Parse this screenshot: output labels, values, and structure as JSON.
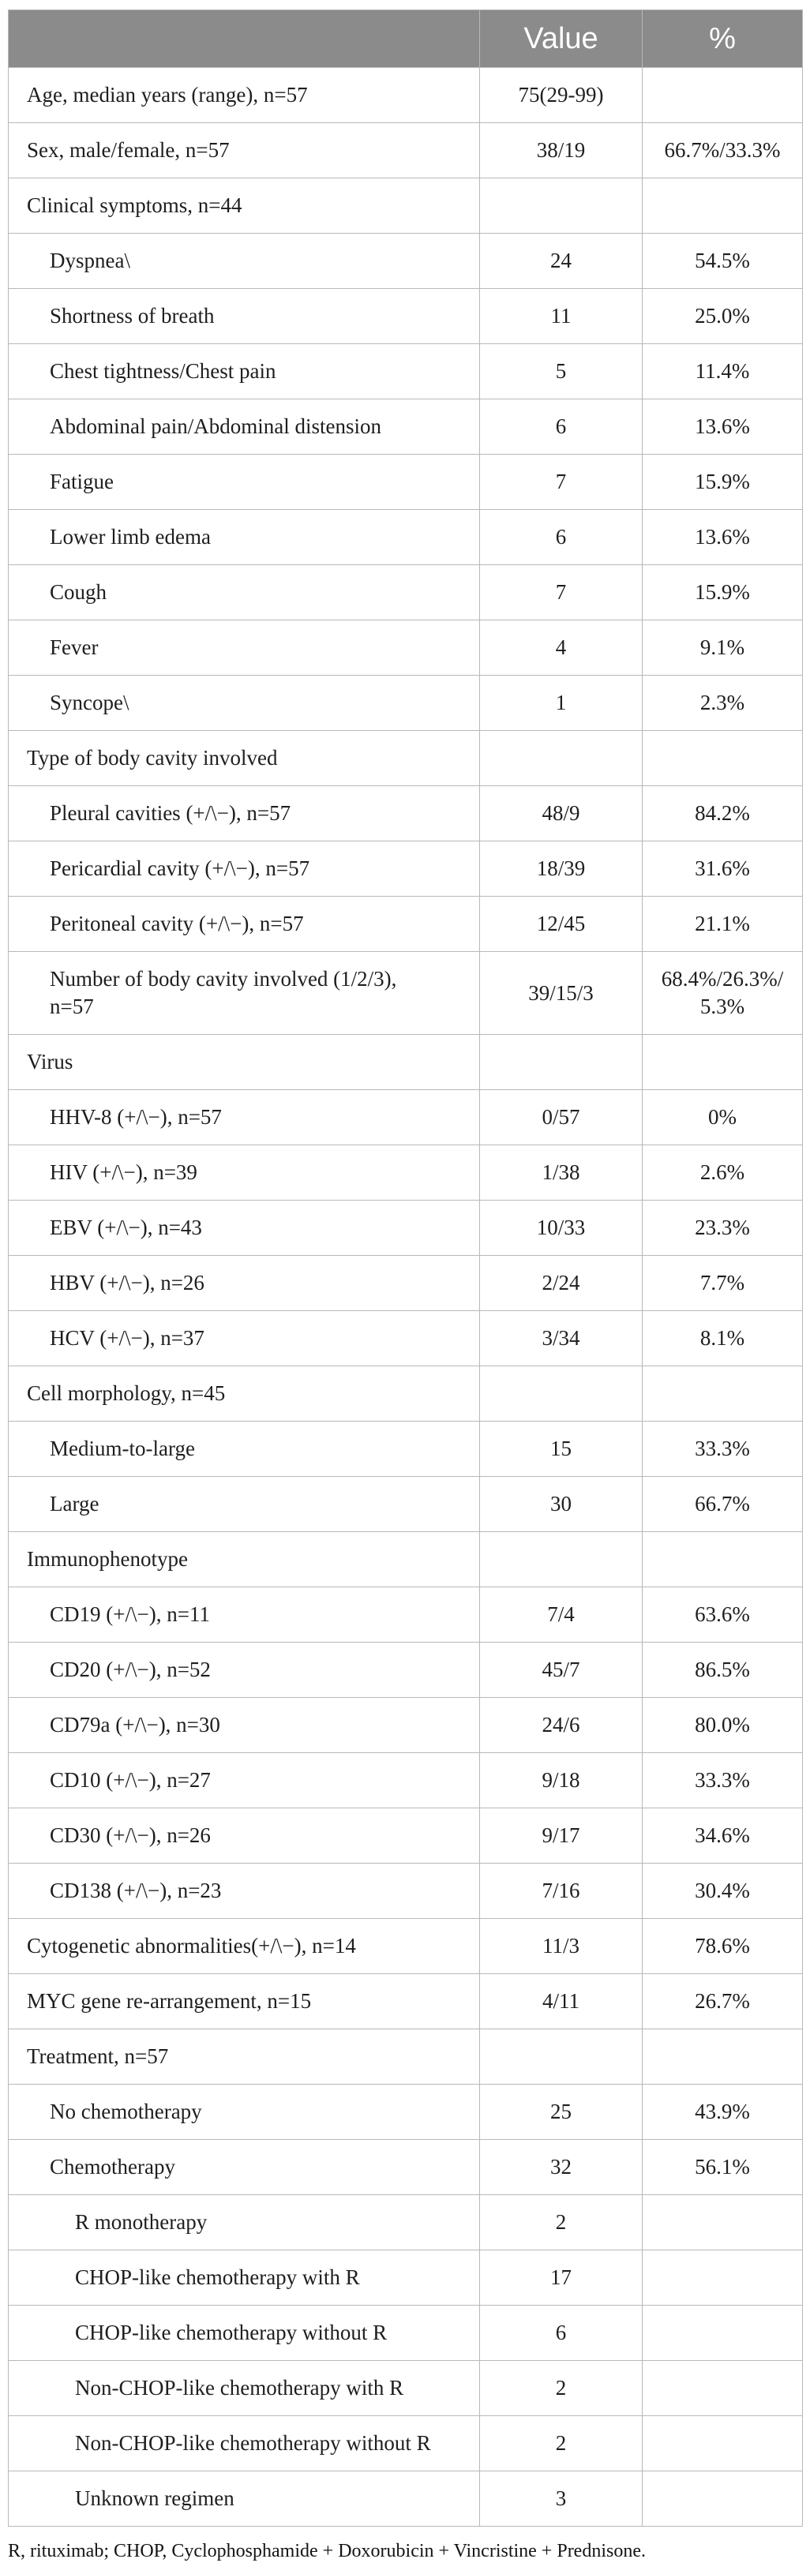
{
  "colors": {
    "header_bg": "#8b8b8b",
    "header_text": "#ffffff",
    "border": "#b8b8b8",
    "text": "#1e1e1e"
  },
  "table": {
    "headers": [
      "",
      "Value",
      "%"
    ],
    "rows": [
      {
        "label": "Age, median years (range), n=57",
        "value": "75(29-99)",
        "pct": "",
        "indent": 0
      },
      {
        "label": "Sex, male/female, n=57",
        "value": "38/19",
        "pct": "66.7%/33.3%",
        "indent": 0
      },
      {
        "label": "Clinical symptoms, n=44",
        "value": "",
        "pct": "",
        "indent": 0
      },
      {
        "label": "Dyspnea\\",
        "value": "24",
        "pct": "54.5%",
        "indent": 1
      },
      {
        "label": "Shortness of breath",
        "value": "11",
        "pct": "25.0%",
        "indent": 1
      },
      {
        "label": "Chest tightness/Chest pain",
        "value": "5",
        "pct": "11.4%",
        "indent": 1
      },
      {
        "label": "Abdominal pain/Abdominal distension",
        "value": "6",
        "pct": "13.6%",
        "indent": 1
      },
      {
        "label": "Fatigue",
        "value": "7",
        "pct": "15.9%",
        "indent": 1
      },
      {
        "label": "Lower limb edema",
        "value": "6",
        "pct": "13.6%",
        "indent": 1
      },
      {
        "label": "Cough",
        "value": "7",
        "pct": "15.9%",
        "indent": 1
      },
      {
        "label": "Fever",
        "value": "4",
        "pct": "9.1%",
        "indent": 1
      },
      {
        "label": "Syncope\\",
        "value": "1",
        "pct": "2.3%",
        "indent": 1
      },
      {
        "label": "Type of body cavity involved",
        "value": "",
        "pct": "",
        "indent": 0
      },
      {
        "label": "Pleural cavities (+/\\−), n=57",
        "value": "48/9",
        "pct": "84.2%",
        "indent": 1
      },
      {
        "label": "Pericardial cavity (+/\\−), n=57",
        "value": "18/39",
        "pct": "31.6%",
        "indent": 1
      },
      {
        "label": "Peritoneal cavity (+/\\−), n=57",
        "value": "12/45",
        "pct": "21.1%",
        "indent": 1
      },
      {
        "label": "Number of body cavity involved (1/2/3),\nn=57",
        "value": "39/15/3",
        "pct": "68.4%/26.3%/\n5.3%",
        "indent": 1
      },
      {
        "label": "Virus",
        "value": "",
        "pct": "",
        "indent": 0
      },
      {
        "label": "HHV-8 (+/\\−), n=57",
        "value": "0/57",
        "pct": "0%",
        "indent": 1
      },
      {
        "label": "HIV (+/\\−), n=39",
        "value": "1/38",
        "pct": "2.6%",
        "indent": 1
      },
      {
        "label": "EBV (+/\\−), n=43",
        "value": "10/33",
        "pct": "23.3%",
        "indent": 1
      },
      {
        "label": "HBV (+/\\−), n=26",
        "value": "2/24",
        "pct": "7.7%",
        "indent": 1
      },
      {
        "label": "HCV (+/\\−), n=37",
        "value": "3/34",
        "pct": "8.1%",
        "indent": 1
      },
      {
        "label": "Cell morphology, n=45",
        "value": "",
        "pct": "",
        "indent": 0
      },
      {
        "label": "Medium-to-large",
        "value": "15",
        "pct": "33.3%",
        "indent": 1
      },
      {
        "label": "Large",
        "value": "30",
        "pct": "66.7%",
        "indent": 1
      },
      {
        "label": "Immunophenotype",
        "value": "",
        "pct": "",
        "indent": 0
      },
      {
        "label": "CD19 (+/\\−), n=11",
        "value": "7/4",
        "pct": "63.6%",
        "indent": 1
      },
      {
        "label": "CD20 (+/\\−), n=52",
        "value": "45/7",
        "pct": "86.5%",
        "indent": 1
      },
      {
        "label": "CD79a (+/\\−), n=30",
        "value": "24/6",
        "pct": "80.0%",
        "indent": 1
      },
      {
        "label": "CD10 (+/\\−), n=27",
        "value": "9/18",
        "pct": "33.3%",
        "indent": 1
      },
      {
        "label": "CD30 (+/\\−), n=26",
        "value": "9/17",
        "pct": "34.6%",
        "indent": 1
      },
      {
        "label": "CD138 (+/\\−), n=23",
        "value": "7/16",
        "pct": "30.4%",
        "indent": 1
      },
      {
        "label": "Cytogenetic abnormalities(+/\\−), n=14",
        "value": "11/3",
        "pct": "78.6%",
        "indent": 0
      },
      {
        "label": "MYC gene re-arrangement, n=15",
        "value": "4/11",
        "pct": "26.7%",
        "indent": 0
      },
      {
        "label": "Treatment, n=57",
        "value": "",
        "pct": "",
        "indent": 0
      },
      {
        "label": "No chemotherapy",
        "value": "25",
        "pct": "43.9%",
        "indent": 1
      },
      {
        "label": "Chemotherapy",
        "value": "32",
        "pct": "56.1%",
        "indent": 1
      },
      {
        "label": "R monotherapy",
        "value": "2",
        "pct": "",
        "indent": 2
      },
      {
        "label": "CHOP-like chemotherapy with R",
        "value": "17",
        "pct": "",
        "indent": 2
      },
      {
        "label": "CHOP-like chemotherapy without R",
        "value": "6",
        "pct": "",
        "indent": 2
      },
      {
        "label": "Non-CHOP-like chemotherapy with R",
        "value": "2",
        "pct": "",
        "indent": 2
      },
      {
        "label": "Non-CHOP-like chemotherapy without R",
        "value": "2",
        "pct": "",
        "indent": 2
      },
      {
        "label": "Unknown regimen",
        "value": "3",
        "pct": "",
        "indent": 2
      }
    ]
  },
  "footnote": "R, rituximab; CHOP, Cyclophosphamide + Doxorubicin + Vincristine + Prednisone."
}
